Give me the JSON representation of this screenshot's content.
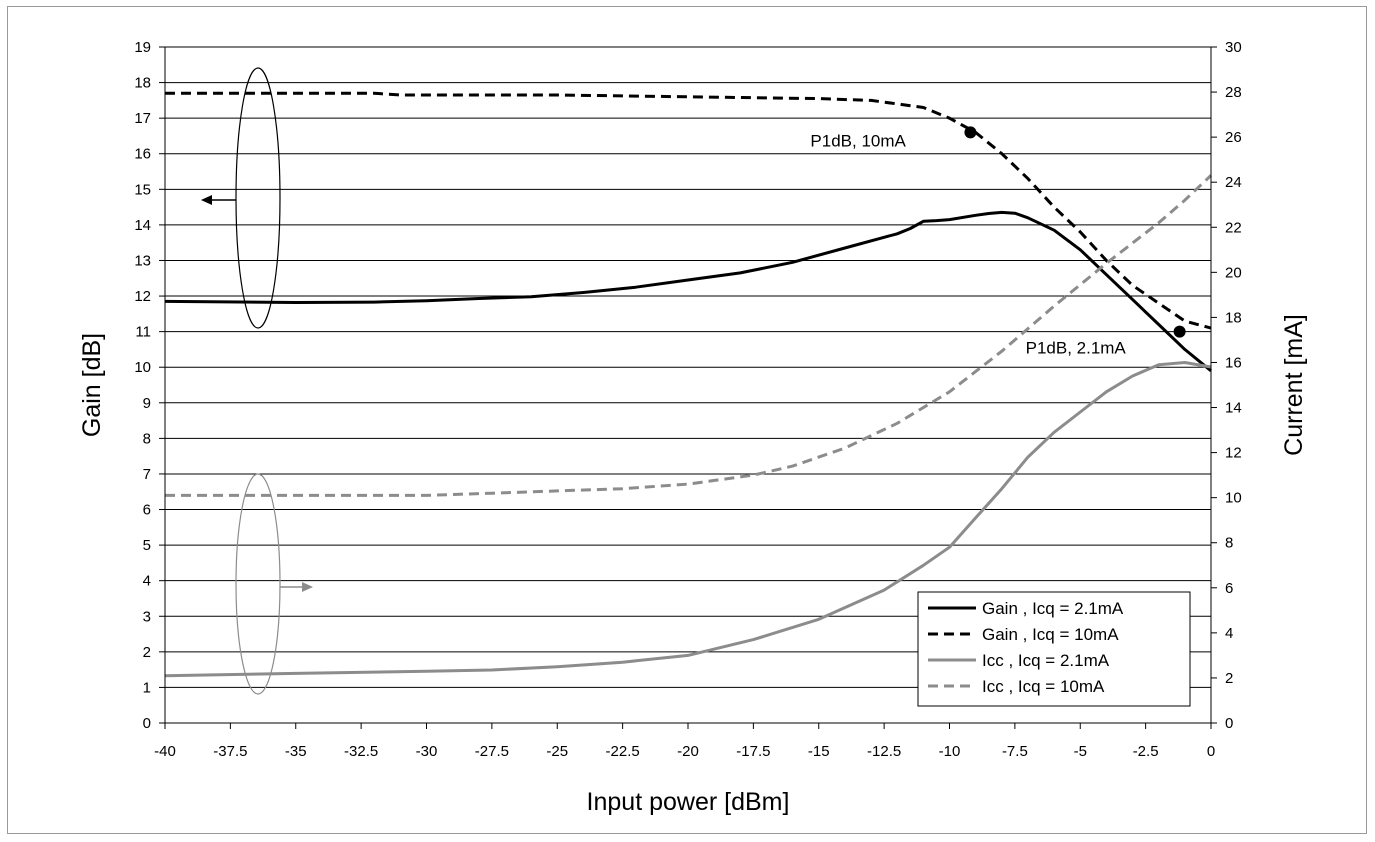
{
  "chart_data": {
    "type": "line",
    "xlabel": "Input power [dBm]",
    "ylabel_left": "Gain [dB]",
    "ylabel_right": "Current [mA]",
    "xlim": [
      -40,
      0
    ],
    "ylim_left": [
      0,
      19
    ],
    "ylim_right": [
      0,
      30
    ],
    "x_ticks": [
      -40,
      -37.5,
      -35,
      -32.5,
      -30,
      -27.5,
      -25,
      -22.5,
      -20,
      -17.5,
      -15,
      -12.5,
      -10,
      -7.5,
      -5,
      -2.5,
      0
    ],
    "y_left_ticks": [
      0,
      1,
      2,
      3,
      4,
      5,
      6,
      7,
      8,
      9,
      10,
      11,
      12,
      13,
      14,
      15,
      16,
      17,
      18,
      19
    ],
    "y_right_ticks": [
      0,
      2,
      4,
      6,
      8,
      10,
      12,
      14,
      16,
      18,
      20,
      22,
      24,
      26,
      28,
      30
    ],
    "grid": "horizontal",
    "legend_position": "bottom-right",
    "series": [
      {
        "name": "Gain , Icq = 2.1mA",
        "axis": "left",
        "style": "solid",
        "color": "#000000",
        "x": [
          -40,
          -35,
          -32,
          -30,
          -28,
          -26,
          -24,
          -22,
          -20,
          -18,
          -16,
          -14,
          -12.5,
          -12,
          -11.5,
          -11,
          -10.5,
          -10,
          -9,
          -8.5,
          -8,
          -7.5,
          -7,
          -6,
          -5,
          -4,
          -3,
          -2,
          -1,
          0
        ],
        "values": [
          11.85,
          11.82,
          11.83,
          11.87,
          11.93,
          11.98,
          12.1,
          12.25,
          12.45,
          12.65,
          12.95,
          13.35,
          13.65,
          13.75,
          13.9,
          14.1,
          14.12,
          14.15,
          14.27,
          14.32,
          14.35,
          14.33,
          14.2,
          13.85,
          13.3,
          12.6,
          11.9,
          11.2,
          10.5,
          9.9
        ]
      },
      {
        "name": "Gain , Icq = 10mA",
        "axis": "left",
        "style": "dashed",
        "color": "#000000",
        "x": [
          -40,
          -35,
          -32,
          -31,
          -25,
          -20,
          -15,
          -13,
          -12,
          -11,
          -10,
          -9,
          -8,
          -7,
          -6,
          -5,
          -4,
          -3,
          -2,
          -1,
          0
        ],
        "values": [
          17.7,
          17.7,
          17.7,
          17.65,
          17.65,
          17.6,
          17.55,
          17.5,
          17.4,
          17.3,
          17.0,
          16.6,
          16.0,
          15.3,
          14.5,
          13.8,
          13.0,
          12.3,
          11.8,
          11.3,
          11.1
        ]
      },
      {
        "name": "Icc , Icq = 2.1mA",
        "axis": "right",
        "style": "solid",
        "color": "#8c8c8c",
        "x": [
          -40,
          -35,
          -30,
          -27.5,
          -25,
          -22.5,
          -20,
          -17.5,
          -15,
          -12.5,
          -11,
          -10,
          -9,
          -8,
          -7,
          -6,
          -5,
          -4,
          -3,
          -2,
          -1,
          0
        ],
        "values": [
          2.1,
          2.2,
          2.3,
          2.35,
          2.5,
          2.7,
          3.0,
          3.7,
          4.6,
          5.9,
          7.0,
          7.8,
          9.1,
          10.4,
          11.8,
          12.9,
          13.8,
          14.7,
          15.4,
          15.9,
          16.0,
          15.8
        ]
      },
      {
        "name": "Icc , Icq = 10mA",
        "axis": "right",
        "style": "dashed",
        "color": "#8c8c8c",
        "x": [
          -40,
          -35,
          -30,
          -27.5,
          -25,
          -22.5,
          -20,
          -17.5,
          -16,
          -14,
          -12,
          -10,
          -8,
          -6,
          -4,
          -2,
          -1,
          0
        ],
        "values": [
          10.1,
          10.1,
          10.1,
          10.2,
          10.3,
          10.4,
          10.6,
          11.0,
          11.4,
          12.2,
          13.3,
          14.7,
          16.5,
          18.5,
          20.4,
          22.2,
          23.2,
          24.3
        ]
      }
    ],
    "markers": [
      {
        "x": -9.2,
        "y": 16.6,
        "axis": "left",
        "label": "P1dB, 10mA"
      },
      {
        "x": -1.2,
        "y": 11.0,
        "axis": "left",
        "label": "P1dB, 2.1mA"
      }
    ]
  }
}
